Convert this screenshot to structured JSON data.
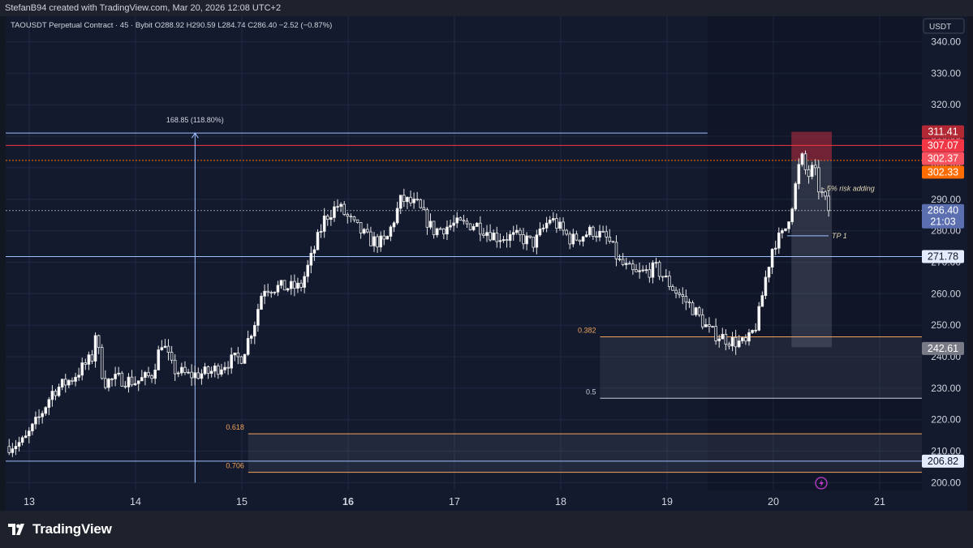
{
  "header": {
    "text": "StefanB94 created with TradingView.com, Mar 20, 2026 12:08 UTC+2"
  },
  "legend": {
    "text": "TAOUSDT Perpetual Contract · 45 · Bybit  O288.92  H290.59  L284.74  C286.40  −2.52 (−0.87%)"
  },
  "footer": {
    "brand": "TradingView"
  },
  "colors": {
    "background": "#131a2e",
    "candle_up": "#e8e8e8",
    "candle_down": "#e8e8e8",
    "fib": "#f0a35a",
    "level": "#9fc0ff",
    "stop": "#f23645",
    "entry": "#ff6d00"
  },
  "chart_data": {
    "type": "candlestick",
    "symbol": "TAOUSDT",
    "timeframe": "45",
    "exchange": "Bybit",
    "currency": "USDT",
    "ylim": [
      196,
      345
    ],
    "y_ticks": [
      340,
      330,
      320,
      310,
      300,
      290,
      280,
      270,
      260,
      250,
      240,
      230,
      220,
      210,
      200
    ],
    "x_ticks": [
      {
        "label": "13",
        "day": 13,
        "bold": false
      },
      {
        "label": "14",
        "day": 14,
        "bold": false
      },
      {
        "label": "15",
        "day": 15,
        "bold": false
      },
      {
        "label": "16",
        "day": 16,
        "bold": true
      },
      {
        "label": "17",
        "day": 17,
        "bold": false
      },
      {
        "label": "18",
        "day": 18,
        "bold": false
      },
      {
        "label": "19",
        "day": 19,
        "bold": false
      },
      {
        "label": "20",
        "day": 20,
        "bold": false
      },
      {
        "label": "21",
        "day": 21,
        "bold": false
      }
    ],
    "xlim": [
      12.78,
      21.42
    ],
    "path": [
      [
        12.78,
        211.5
      ],
      [
        12.95,
        213
      ],
      [
        13.1,
        221
      ],
      [
        13.22,
        229
      ],
      [
        13.4,
        233
      ],
      [
        13.6,
        240
      ],
      [
        13.62,
        248
      ],
      [
        13.7,
        232
      ],
      [
        13.85,
        233
      ],
      [
        14.0,
        232
      ],
      [
        14.15,
        234
      ],
      [
        14.25,
        245
      ],
      [
        14.35,
        236
      ],
      [
        14.5,
        234
      ],
      [
        14.7,
        235
      ],
      [
        14.85,
        238
      ],
      [
        15.0,
        240
      ],
      [
        15.12,
        251
      ],
      [
        15.2,
        262
      ],
      [
        15.35,
        262
      ],
      [
        15.55,
        262
      ],
      [
        15.65,
        271
      ],
      [
        15.78,
        284
      ],
      [
        15.9,
        288
      ],
      [
        16.05,
        282
      ],
      [
        16.2,
        277
      ],
      [
        16.35,
        276
      ],
      [
        16.5,
        290
      ],
      [
        16.65,
        288
      ],
      [
        16.8,
        280
      ],
      [
        17.0,
        282
      ],
      [
        17.2,
        282
      ],
      [
        17.4,
        278
      ],
      [
        17.6,
        278
      ],
      [
        17.75,
        276
      ],
      [
        17.9,
        284
      ],
      [
        18.1,
        277
      ],
      [
        18.3,
        280
      ],
      [
        18.45,
        277
      ],
      [
        18.55,
        270
      ],
      [
        18.7,
        266
      ],
      [
        18.9,
        268
      ],
      [
        19.05,
        262
      ],
      [
        19.25,
        255
      ],
      [
        19.4,
        248
      ],
      [
        19.6,
        245
      ],
      [
        19.75,
        244
      ],
      [
        19.85,
        251
      ],
      [
        19.92,
        264
      ],
      [
        20.0,
        276
      ],
      [
        20.1,
        279
      ],
      [
        20.18,
        289
      ],
      [
        20.26,
        304
      ],
      [
        20.32,
        297
      ],
      [
        20.38,
        300
      ],
      [
        20.43,
        293
      ],
      [
        20.48,
        290
      ],
      [
        20.52,
        286.4
      ]
    ],
    "levels": [
      {
        "name": "stop-line",
        "price": 307.07,
        "color": "#f23645",
        "dashed": false
      },
      {
        "name": "entry-line",
        "price": 302.33,
        "color": "#ff6d00",
        "dashed": true
      },
      {
        "name": "last-price-line",
        "price": 286.4,
        "color": "#9598a1",
        "dashed": true
      },
      {
        "name": "support-line-271",
        "price": 271.78,
        "color": "#9fc0ff",
        "dashed": false
      },
      {
        "name": "support-line-206",
        "price": 206.82,
        "color": "#9fc0ff",
        "dashed": false
      },
      {
        "name": "range-top-line",
        "price": 311.0,
        "color": "#9fc0ff",
        "dashed": false,
        "x_end": 19.38
      }
    ],
    "fib_zones": [
      {
        "name": "fib-zone-upper",
        "x_start": 18.37,
        "x_end": 21.42,
        "top": 246.3,
        "bottom": 226.8,
        "top_label": "0.382",
        "bottom_label": "0.5"
      },
      {
        "name": "fib-zone-lower",
        "x_start": 15.06,
        "x_end": 21.42,
        "top": 215.5,
        "bottom": 203.3,
        "top_label": "0.618",
        "bottom_label": "0.706"
      }
    ],
    "measure": {
      "x": 14.56,
      "from": 200,
      "to": 311,
      "label": "168.85 (118.80%)"
    },
    "position": {
      "x_start": 20.17,
      "x_end": 20.55,
      "entry": 302.33,
      "stop": 311.4,
      "target": 243.0
    },
    "annotations": [
      {
        "text": "TP 1",
        "day": 20.55,
        "price": 278.4,
        "target_day": 20.13
      },
      {
        "text": "-.5% risk adding",
        "day": 20.46,
        "price": 293.4
      }
    ],
    "price_tags": [
      {
        "value": "311.41",
        "price": 311.41,
        "bg": "#b22833",
        "fg": "#ffffff"
      },
      {
        "value": "307.07",
        "price": 307.07,
        "bg": "#f23645",
        "fg": "#ffffff"
      },
      {
        "value": "302.37",
        "price": 302.9,
        "bg": "#f7525f",
        "fg": "#ffffff"
      },
      {
        "value": "302.33",
        "price": 298.6,
        "bg": "#ff6d00",
        "fg": "#ffffff"
      },
      {
        "value": "286.40",
        "price": 286.4,
        "bg": "#5b6fb0",
        "fg": "#ffffff",
        "sub": "21:03"
      },
      {
        "value": "271.78",
        "price": 271.78,
        "bg": "#e3ecff",
        "fg": "#131722"
      },
      {
        "value": "242.61",
        "price": 242.61,
        "bg": "#787b86",
        "fg": "#ffffff"
      },
      {
        "value": "206.82",
        "price": 206.82,
        "bg": "#e3ecff",
        "fg": "#131722"
      }
    ]
  }
}
